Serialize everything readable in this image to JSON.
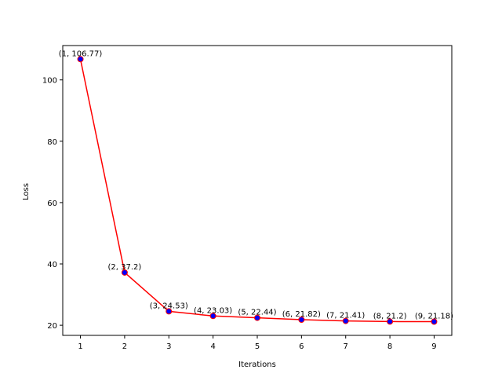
{
  "chart_data": {
    "type": "line",
    "title": "",
    "xlabel": "Iterations",
    "ylabel": "Loss",
    "x": [
      1,
      2,
      3,
      4,
      5,
      6,
      7,
      8,
      9
    ],
    "series": [
      {
        "values": [
          106.77,
          37.2,
          24.53,
          23.03,
          22.44,
          21.82,
          21.41,
          21.2,
          21.18
        ],
        "line_color": "#ff0000",
        "marker_face": "#0000ff",
        "marker_edge": "#ff0000"
      }
    ],
    "point_labels": [
      "(1, 106.77)",
      "(2, 37.2)",
      "(3, 24.53)",
      "(4, 23.03)",
      "(5, 22.44)",
      "(6, 21.82)",
      "(7, 21.41)",
      "(8, 21.2)",
      "(9, 21.18)"
    ],
    "xticks": [
      1,
      2,
      3,
      4,
      5,
      6,
      7,
      8,
      9
    ],
    "yticks": [
      20,
      40,
      60,
      80,
      100
    ],
    "xlim": [
      0.6,
      9.4
    ],
    "ylim": [
      16.7,
      111.2
    ],
    "grid": false
  }
}
